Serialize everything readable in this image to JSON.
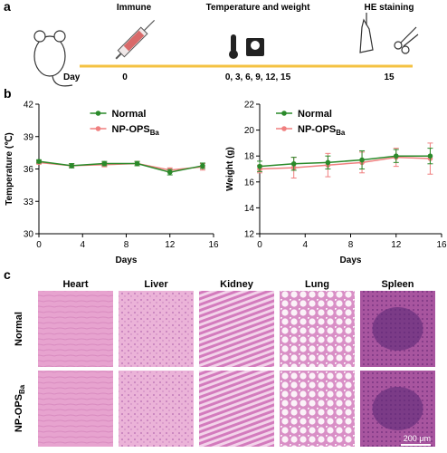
{
  "panel_labels": [
    "a",
    "b",
    "c"
  ],
  "timeline": {
    "day_label": "Day",
    "events": [
      {
        "label": "Immune",
        "days": "0"
      },
      {
        "label": "Temperature and weight",
        "days": "0, 3, 6, 9, 12, 15"
      },
      {
        "label": "HE staining",
        "days": "15"
      }
    ]
  },
  "chart_data": [
    {
      "type": "line",
      "ylabel": "Temperature (℃)",
      "xlabel": "Days",
      "x": [
        0,
        3,
        6,
        9,
        12,
        15
      ],
      "series": [
        {
          "name": "Normal",
          "color": "#2a8a2a",
          "values": [
            36.7,
            36.3,
            36.5,
            36.5,
            35.7,
            36.3
          ],
          "errors": [
            0.15,
            0.2,
            0.2,
            0.2,
            0.25,
            0.25
          ]
        },
        {
          "name": "NP-OPS",
          "name_sub": "Ba",
          "color": "#f07f7f",
          "values": [
            36.6,
            36.3,
            36.4,
            36.5,
            35.9,
            36.2
          ],
          "errors": [
            0.15,
            0.15,
            0.2,
            0.2,
            0.2,
            0.3
          ]
        }
      ],
      "xlim": [
        0,
        16
      ],
      "xticks": [
        0,
        4,
        8,
        12,
        16
      ],
      "ylim": [
        30,
        42
      ],
      "yticks": [
        30,
        33,
        36,
        39,
        42
      ],
      "legend": "upper center"
    },
    {
      "type": "line",
      "ylabel": "Weight (g)",
      "xlabel": "Days",
      "x": [
        0,
        3,
        6,
        9,
        12,
        15
      ],
      "series": [
        {
          "name": "Normal",
          "color": "#2a8a2a",
          "values": [
            17.2,
            17.4,
            17.5,
            17.7,
            18.0,
            18.0
          ],
          "errors": [
            0.4,
            0.5,
            0.5,
            0.7,
            0.5,
            0.6
          ]
        },
        {
          "name": "NP-OPS",
          "name_sub": "Ba",
          "color": "#f07f7f",
          "values": [
            17.0,
            17.1,
            17.3,
            17.5,
            17.9,
            17.8
          ],
          "errors": [
            0.3,
            0.8,
            0.9,
            0.8,
            0.7,
            1.2
          ]
        }
      ],
      "xlim": [
        0,
        16
      ],
      "xticks": [
        0,
        4,
        8,
        12,
        16
      ],
      "ylim": [
        12,
        22
      ],
      "yticks": [
        12,
        14,
        16,
        18,
        20,
        22
      ],
      "legend": "upper left"
    }
  ],
  "histology": {
    "columns": [
      "Heart",
      "Liver",
      "Kidney",
      "Lung",
      "Spleen"
    ],
    "rows": [
      {
        "name": "Normal"
      },
      {
        "name": "NP-OPS",
        "sub": "Ba"
      }
    ],
    "scale_bar": "200 μm"
  }
}
